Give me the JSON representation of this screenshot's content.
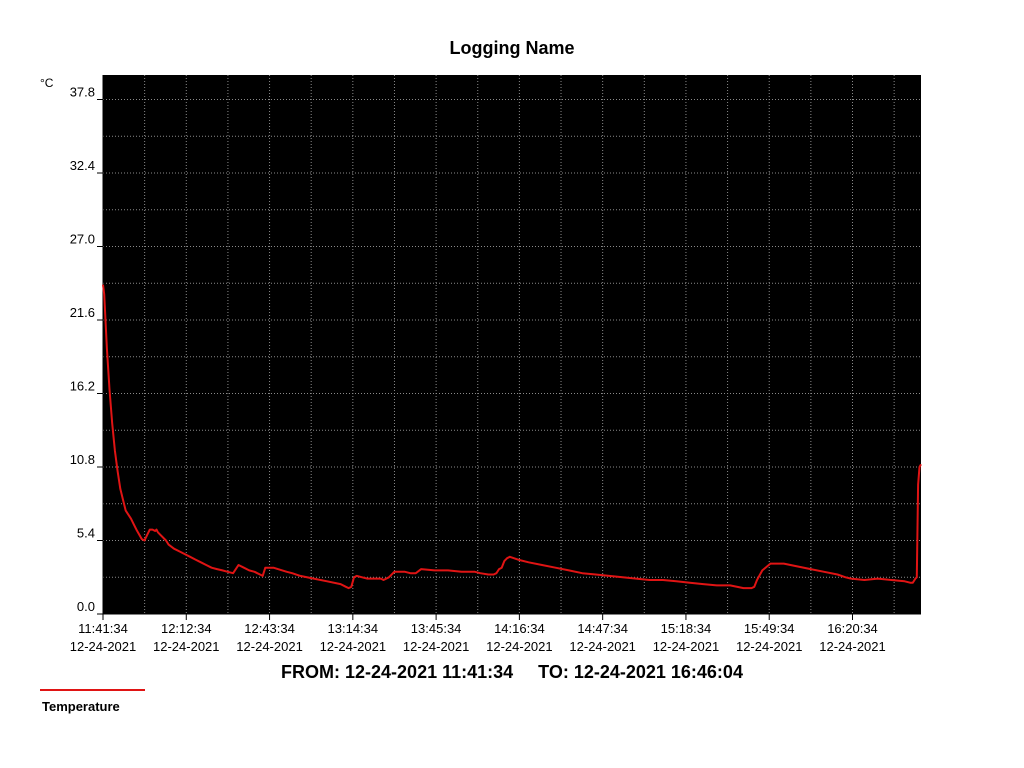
{
  "chart_data": {
    "type": "line",
    "title": "Logging Name",
    "ylabel": "°C",
    "ylim": [
      0.0,
      39.6
    ],
    "yticks": [
      "0.0",
      "5.4",
      "10.8",
      "16.2",
      "21.6",
      "27.0",
      "32.4",
      "37.8"
    ],
    "xlim": [
      "12-24-2021 11:41:34",
      "12-24-2021 16:46:04"
    ],
    "xticks": [
      {
        "time": "11:41:34",
        "date": "12-24-2021"
      },
      {
        "time": "12:12:34",
        "date": "12-24-2021"
      },
      {
        "time": "12:43:34",
        "date": "12-24-2021"
      },
      {
        "time": "13:14:34",
        "date": "12-24-2021"
      },
      {
        "time": "13:45:34",
        "date": "12-24-2021"
      },
      {
        "time": "14:16:34",
        "date": "12-24-2021"
      },
      {
        "time": "14:47:34",
        "date": "12-24-2021"
      },
      {
        "time": "15:18:34",
        "date": "12-24-2021"
      },
      {
        "time": "15:49:34",
        "date": "12-24-2021"
      },
      {
        "time": "16:20:34",
        "date": "12-24-2021"
      }
    ],
    "grid": true,
    "legend_position": "bottom-left",
    "series": [
      {
        "name": "Temperature",
        "color": "#e01414",
        "x": [
          "11:41:34",
          "11:42:00",
          "11:43:00",
          "11:44:00",
          "11:45:00",
          "11:46:00",
          "11:47:00",
          "11:48:00",
          "11:49:00",
          "11:50:00",
          "11:51:00",
          "11:52:00",
          "11:53:00",
          "11:54:00",
          "11:56:00",
          "11:57:00",
          "11:58:00",
          "11:59:00",
          "12:00:00",
          "12:01:00",
          "12:01:30",
          "12:02:00",
          "12:03:00",
          "12:05:00",
          "12:06:00",
          "12:08:00",
          "12:10:00",
          "12:12:00",
          "12:14:00",
          "12:16:00",
          "12:18:00",
          "12:20:00",
          "12:22:00",
          "12:24:00",
          "12:26:00",
          "12:28:00",
          "12:30:00",
          "12:32:00",
          "12:34:00",
          "12:36:00",
          "12:38:00",
          "12:39:00",
          "12:40:00",
          "12:41:00",
          "12:42:00",
          "12:45:00",
          "12:50:00",
          "12:52:00",
          "12:55:00",
          "13:00:00",
          "13:05:00",
          "13:10:00",
          "13:12:00",
          "13:13:00",
          "13:14:00",
          "13:15:00",
          "13:16:00",
          "13:18:00",
          "13:20:00",
          "13:25:00",
          "13:26:00",
          "13:28:00",
          "13:30:00",
          "13:34:00",
          "13:36:00",
          "13:38:00",
          "13:40:00",
          "13:45:00",
          "13:50:00",
          "13:55:00",
          "14:00:00",
          "14:02:00",
          "14:05:00",
          "14:07:00",
          "14:08:00",
          "14:09:00",
          "14:10:00",
          "14:11:00",
          "14:12:00",
          "14:13:00",
          "14:16:00",
          "14:20:00",
          "14:25:00",
          "14:30:00",
          "14:35:00",
          "14:40:00",
          "14:45:00",
          "14:50:00",
          "14:55:00",
          "15:00:00",
          "15:05:00",
          "15:10:00",
          "15:15:00",
          "15:20:00",
          "15:25:00",
          "15:30:00",
          "15:35:00",
          "15:40:00",
          "15:42:00",
          "15:43:00",
          "15:44:00",
          "15:45:00",
          "15:47:00",
          "15:50:00",
          "15:55:00",
          "16:00:00",
          "16:05:00",
          "16:10:00",
          "16:15:00",
          "16:18:00",
          "16:20:00",
          "16:25:00",
          "16:30:00",
          "16:35:00",
          "16:40:00",
          "16:42:00",
          "16:43:00",
          "16:44:00",
          "16:44:30",
          "16:45:00",
          "16:45:30",
          "16:46:04"
        ],
        "values": [
          24.2,
          23.5,
          19.5,
          16.5,
          14.0,
          12.0,
          10.5,
          9.2,
          8.4,
          7.6,
          7.3,
          7.0,
          6.6,
          6.2,
          5.5,
          5.4,
          5.8,
          6.2,
          6.2,
          6.1,
          6.2,
          6.0,
          5.8,
          5.4,
          5.1,
          4.8,
          4.6,
          4.4,
          4.2,
          4.0,
          3.8,
          3.6,
          3.4,
          3.3,
          3.2,
          3.1,
          3.0,
          3.6,
          3.4,
          3.2,
          3.1,
          3.0,
          2.9,
          2.8,
          3.4,
          3.4,
          3.1,
          3.0,
          2.8,
          2.6,
          2.4,
          2.2,
          2.0,
          1.9,
          2.0,
          2.7,
          2.8,
          2.7,
          2.6,
          2.6,
          2.5,
          2.7,
          3.1,
          3.1,
          3.0,
          3.0,
          3.3,
          3.2,
          3.2,
          3.1,
          3.1,
          3.0,
          2.9,
          2.9,
          3.0,
          3.3,
          3.4,
          3.9,
          4.1,
          4.2,
          4.0,
          3.8,
          3.6,
          3.4,
          3.2,
          3.0,
          2.9,
          2.8,
          2.7,
          2.6,
          2.5,
          2.5,
          2.4,
          2.3,
          2.2,
          2.1,
          2.1,
          1.9,
          1.9,
          1.9,
          2.0,
          2.5,
          3.2,
          3.7,
          3.7,
          3.5,
          3.3,
          3.1,
          2.9,
          2.7,
          2.6,
          2.5,
          2.6,
          2.5,
          2.4,
          2.3,
          2.3,
          2.6,
          2.7,
          9.5,
          10.8,
          11.0
        ]
      }
    ]
  },
  "footer": {
    "range_text": "FROM: 12-24-2021 11:41:34     TO: 12-24-2021 16:46:04"
  }
}
